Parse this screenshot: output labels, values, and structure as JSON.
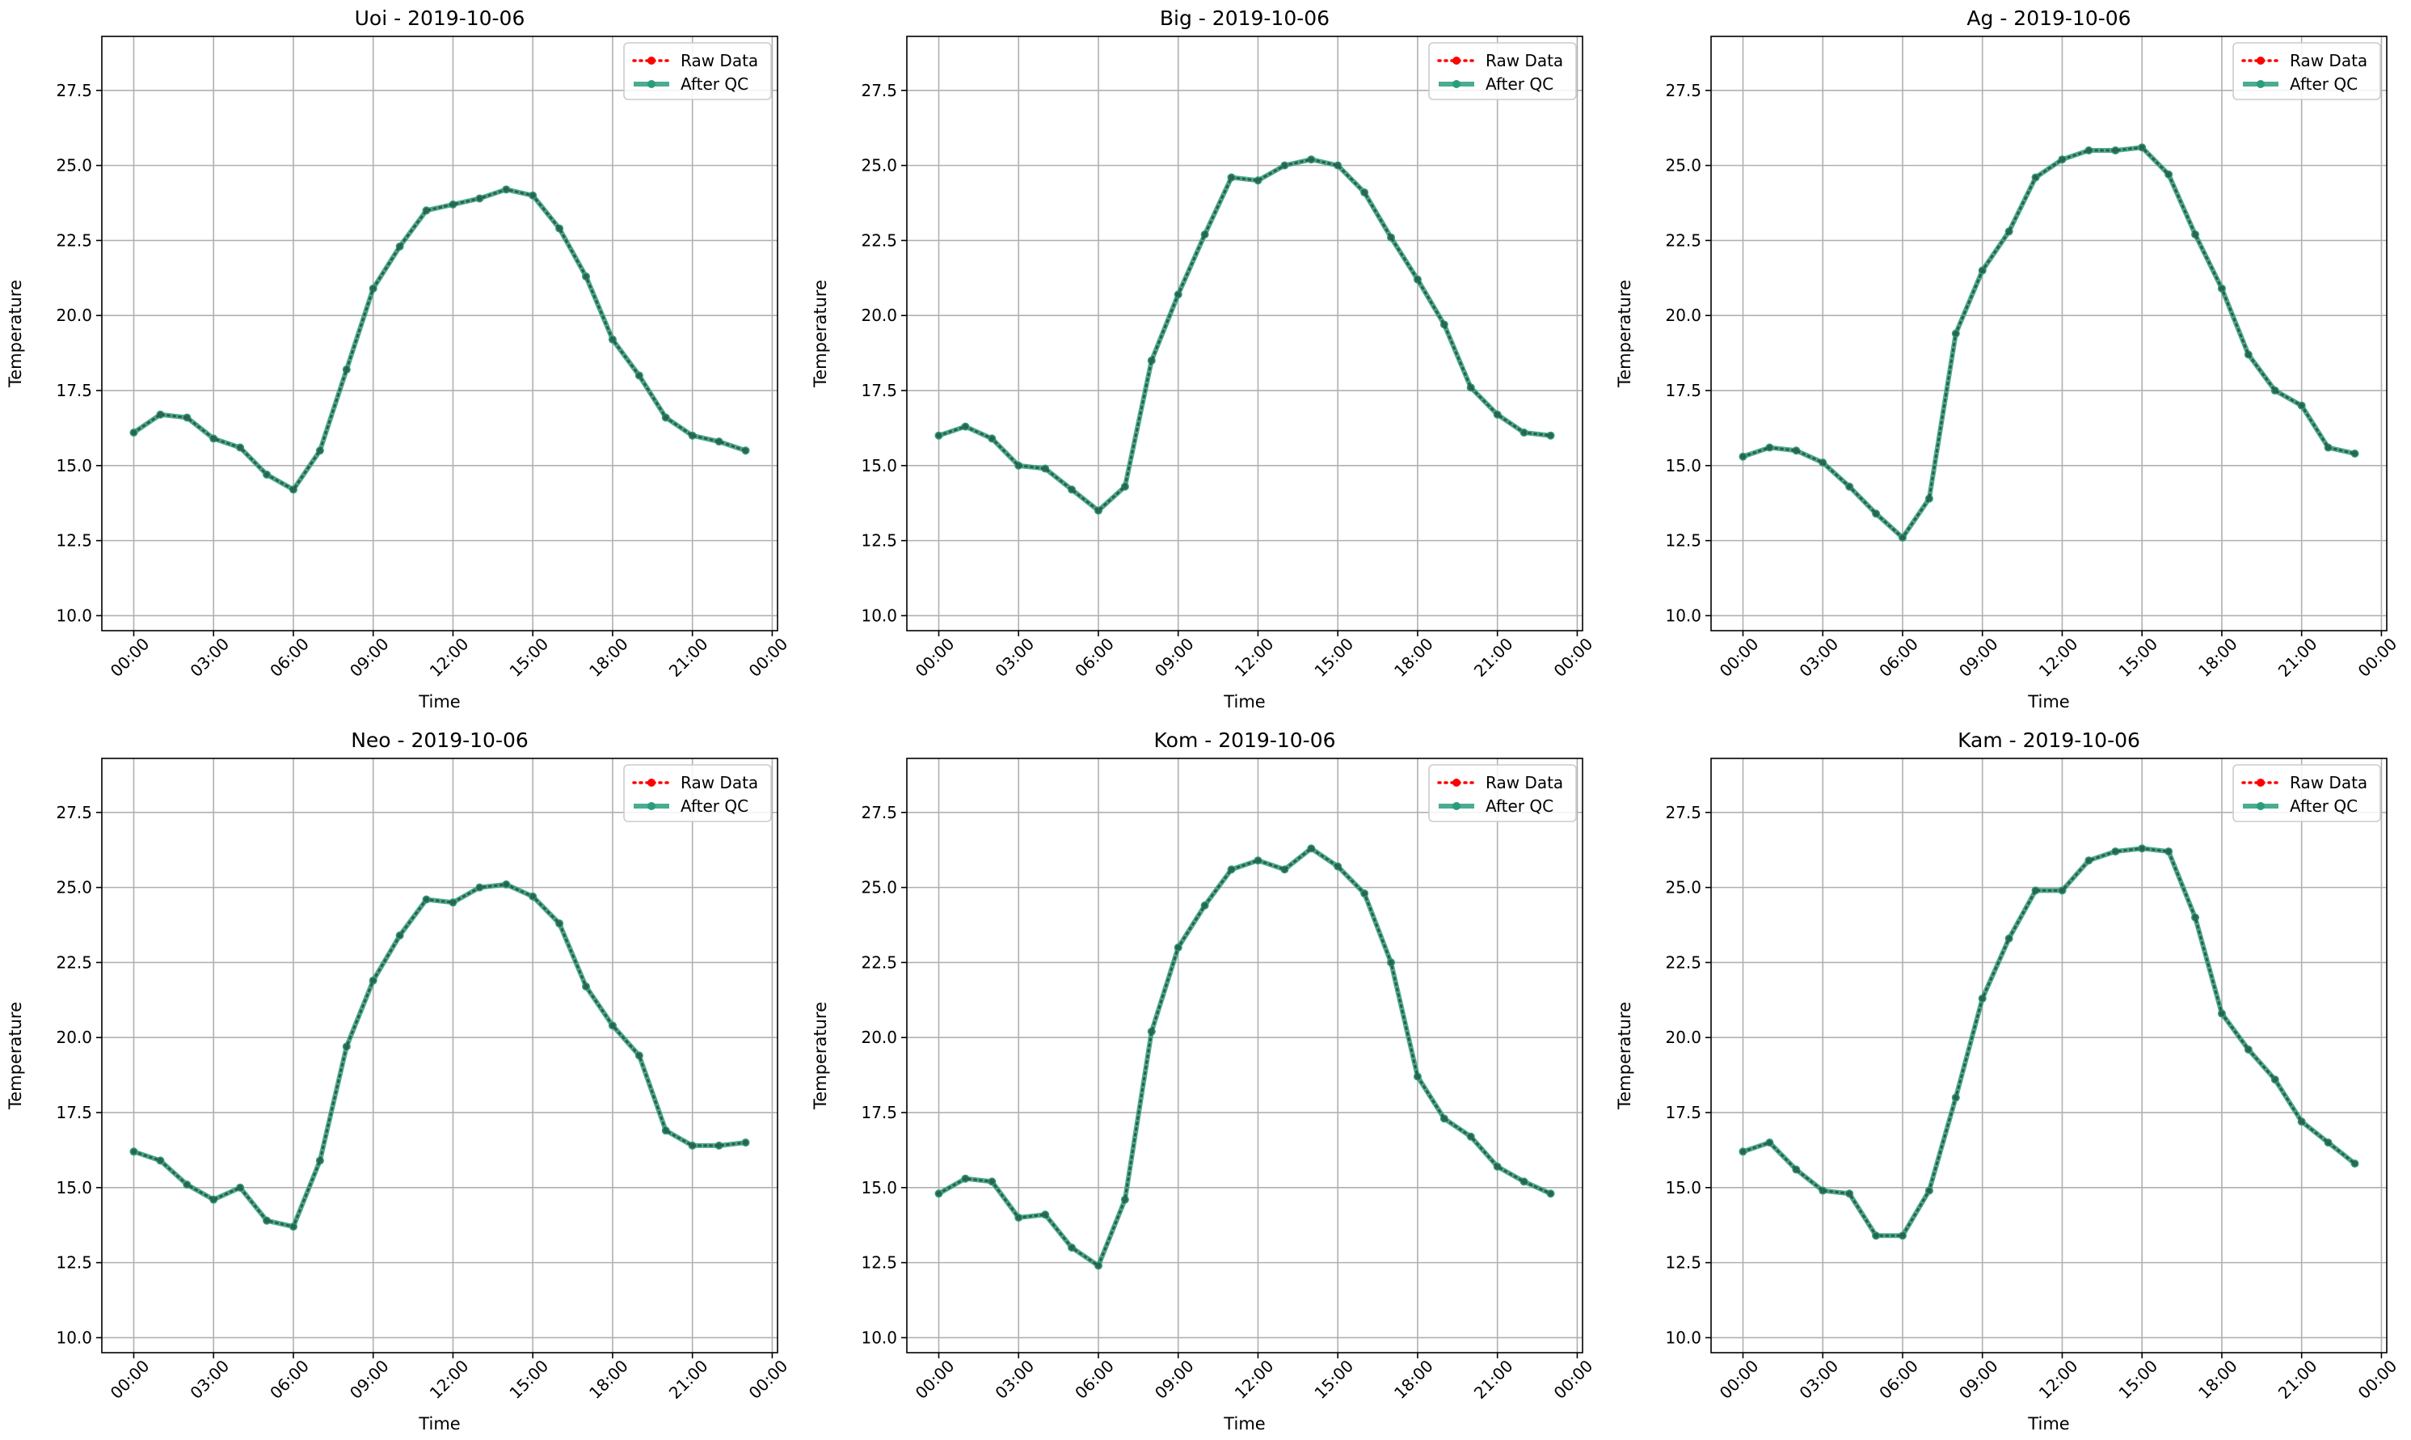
{
  "legend": {
    "raw_label": "Raw Data",
    "qc_label": "After QC"
  },
  "colors": {
    "raw": "#ff0000",
    "qc": "#2a9d7c",
    "grid": "#b0b0b0"
  },
  "chart_data": [
    {
      "type": "line",
      "title": "Uoi - 2019-10-06",
      "xlabel": "Time",
      "ylabel": "Temperature",
      "xticks": [
        "00:00",
        "03:00",
        "06:00",
        "09:00",
        "12:00",
        "15:00",
        "18:00",
        "21:00",
        "00:00"
      ],
      "yticks": [
        "10.0",
        "12.5",
        "15.0",
        "17.5",
        "20.0",
        "22.5",
        "25.0",
        "27.5"
      ],
      "xlim": [
        -1.2,
        24.2
      ],
      "ylim": [
        9.5,
        29.3
      ],
      "grid": true,
      "legend_position": "top-right",
      "x_hours": [
        0,
        1,
        2,
        3,
        4,
        5,
        6,
        7,
        8,
        9,
        10,
        11,
        12,
        13,
        14,
        15,
        16,
        17,
        18,
        19,
        20,
        21,
        22,
        23
      ],
      "series": [
        {
          "name": "Raw Data",
          "values": [
            16.1,
            16.7,
            16.6,
            15.9,
            15.6,
            14.7,
            14.2,
            15.5,
            18.2,
            20.9,
            22.3,
            23.5,
            23.7,
            23.9,
            24.2,
            24.0,
            22.9,
            21.3,
            19.2,
            18.0,
            16.6,
            16.0,
            15.8,
            15.5
          ]
        },
        {
          "name": "After QC",
          "values": [
            16.1,
            16.7,
            16.6,
            15.9,
            15.6,
            14.7,
            14.2,
            15.5,
            18.2,
            20.9,
            22.3,
            23.5,
            23.7,
            23.9,
            24.2,
            24.0,
            22.9,
            21.3,
            19.2,
            18.0,
            16.6,
            16.0,
            15.8,
            15.5
          ]
        }
      ]
    },
    {
      "type": "line",
      "title": "Big - 2019-10-06",
      "xlabel": "Time",
      "ylabel": "Temperature",
      "xticks": [
        "00:00",
        "03:00",
        "06:00",
        "09:00",
        "12:00",
        "15:00",
        "18:00",
        "21:00",
        "00:00"
      ],
      "yticks": [
        "10.0",
        "12.5",
        "15.0",
        "17.5",
        "20.0",
        "22.5",
        "25.0",
        "27.5"
      ],
      "xlim": [
        -1.2,
        24.2
      ],
      "ylim": [
        9.5,
        29.3
      ],
      "grid": true,
      "legend_position": "top-right",
      "x_hours": [
        0,
        1,
        2,
        3,
        4,
        5,
        6,
        7,
        8,
        9,
        10,
        11,
        12,
        13,
        14,
        15,
        16,
        17,
        18,
        19,
        20,
        21,
        22,
        23
      ],
      "series": [
        {
          "name": "Raw Data",
          "values": [
            16.0,
            16.3,
            15.9,
            15.0,
            14.9,
            14.2,
            13.5,
            14.3,
            18.5,
            20.7,
            22.7,
            24.6,
            24.5,
            25.0,
            25.2,
            25.0,
            24.1,
            22.6,
            21.2,
            19.7,
            17.6,
            16.7,
            16.1,
            16.0
          ]
        },
        {
          "name": "After QC",
          "values": [
            16.0,
            16.3,
            15.9,
            15.0,
            14.9,
            14.2,
            13.5,
            14.3,
            18.5,
            20.7,
            22.7,
            24.6,
            24.5,
            25.0,
            25.2,
            25.0,
            24.1,
            22.6,
            21.2,
            19.7,
            17.6,
            16.7,
            16.1,
            16.0
          ]
        }
      ]
    },
    {
      "type": "line",
      "title": "Ag - 2019-10-06",
      "xlabel": "Time",
      "ylabel": "Temperature",
      "xticks": [
        "00:00",
        "03:00",
        "06:00",
        "09:00",
        "12:00",
        "15:00",
        "18:00",
        "21:00",
        "00:00"
      ],
      "yticks": [
        "10.0",
        "12.5",
        "15.0",
        "17.5",
        "20.0",
        "22.5",
        "25.0",
        "27.5"
      ],
      "xlim": [
        -1.2,
        24.2
      ],
      "ylim": [
        9.5,
        29.3
      ],
      "grid": true,
      "legend_position": "top-right",
      "x_hours": [
        0,
        1,
        2,
        3,
        4,
        5,
        6,
        7,
        8,
        9,
        10,
        11,
        12,
        13,
        14,
        15,
        16,
        17,
        18,
        19,
        20,
        21,
        22,
        23
      ],
      "series": [
        {
          "name": "Raw Data",
          "values": [
            15.3,
            15.6,
            15.5,
            15.1,
            14.3,
            13.4,
            12.6,
            13.9,
            19.4,
            21.5,
            22.8,
            24.6,
            25.2,
            25.5,
            25.5,
            25.6,
            24.7,
            22.7,
            20.9,
            18.7,
            17.5,
            17.0,
            15.6,
            15.4
          ]
        },
        {
          "name": "After QC",
          "values": [
            15.3,
            15.6,
            15.5,
            15.1,
            14.3,
            13.4,
            12.6,
            13.9,
            19.4,
            21.5,
            22.8,
            24.6,
            25.2,
            25.5,
            25.5,
            25.6,
            24.7,
            22.7,
            20.9,
            18.7,
            17.5,
            17.0,
            15.6,
            15.4
          ]
        }
      ]
    },
    {
      "type": "line",
      "title": "Neo - 2019-10-06",
      "xlabel": "Time",
      "ylabel": "Temperature",
      "xticks": [
        "00:00",
        "03:00",
        "06:00",
        "09:00",
        "12:00",
        "15:00",
        "18:00",
        "21:00",
        "00:00"
      ],
      "yticks": [
        "10.0",
        "12.5",
        "15.0",
        "17.5",
        "20.0",
        "22.5",
        "25.0",
        "27.5"
      ],
      "xlim": [
        -1.2,
        24.2
      ],
      "ylim": [
        9.5,
        29.3
      ],
      "grid": true,
      "legend_position": "top-right",
      "x_hours": [
        0,
        1,
        2,
        3,
        4,
        5,
        6,
        7,
        8,
        9,
        10,
        11,
        12,
        13,
        14,
        15,
        16,
        17,
        18,
        19,
        20,
        21,
        22,
        23
      ],
      "series": [
        {
          "name": "Raw Data",
          "values": [
            16.2,
            15.9,
            15.1,
            14.6,
            15.0,
            13.9,
            13.7,
            15.9,
            19.7,
            21.9,
            23.4,
            24.6,
            24.5,
            25.0,
            25.1,
            24.7,
            23.8,
            21.7,
            20.4,
            19.4,
            16.9,
            16.4,
            16.4,
            16.5
          ]
        },
        {
          "name": "After QC",
          "values": [
            16.2,
            15.9,
            15.1,
            14.6,
            15.0,
            13.9,
            13.7,
            15.9,
            19.7,
            21.9,
            23.4,
            24.6,
            24.5,
            25.0,
            25.1,
            24.7,
            23.8,
            21.7,
            20.4,
            19.4,
            16.9,
            16.4,
            16.4,
            16.5
          ]
        }
      ]
    },
    {
      "type": "line",
      "title": "Kom - 2019-10-06",
      "xlabel": "Time",
      "ylabel": "Temperature",
      "xticks": [
        "00:00",
        "03:00",
        "06:00",
        "09:00",
        "12:00",
        "15:00",
        "18:00",
        "21:00",
        "00:00"
      ],
      "yticks": [
        "10.0",
        "12.5",
        "15.0",
        "17.5",
        "20.0",
        "22.5",
        "25.0",
        "27.5"
      ],
      "xlim": [
        -1.2,
        24.2
      ],
      "ylim": [
        9.5,
        29.3
      ],
      "grid": true,
      "legend_position": "top-right",
      "x_hours": [
        0,
        1,
        2,
        3,
        4,
        5,
        6,
        7,
        8,
        9,
        10,
        11,
        12,
        13,
        14,
        15,
        16,
        17,
        18,
        19,
        20,
        21,
        22,
        23
      ],
      "series": [
        {
          "name": "Raw Data",
          "values": [
            14.8,
            15.3,
            15.2,
            14.0,
            14.1,
            13.0,
            12.4,
            14.6,
            20.2,
            23.0,
            24.4,
            25.6,
            25.9,
            25.6,
            26.3,
            25.7,
            24.8,
            22.5,
            18.7,
            17.3,
            16.7,
            15.7,
            15.2,
            14.8
          ]
        },
        {
          "name": "After QC",
          "values": [
            14.8,
            15.3,
            15.2,
            14.0,
            14.1,
            13.0,
            12.4,
            14.6,
            20.2,
            23.0,
            24.4,
            25.6,
            25.9,
            25.6,
            26.3,
            25.7,
            24.8,
            22.5,
            18.7,
            17.3,
            16.7,
            15.7,
            15.2,
            14.8
          ]
        }
      ]
    },
    {
      "type": "line",
      "title": "Kam - 2019-10-06",
      "xlabel": "Time",
      "ylabel": "Temperature",
      "xticks": [
        "00:00",
        "03:00",
        "06:00",
        "09:00",
        "12:00",
        "15:00",
        "18:00",
        "21:00",
        "00:00"
      ],
      "yticks": [
        "10.0",
        "12.5",
        "15.0",
        "17.5",
        "20.0",
        "22.5",
        "25.0",
        "27.5"
      ],
      "xlim": [
        -1.2,
        24.2
      ],
      "ylim": [
        9.5,
        29.3
      ],
      "grid": true,
      "legend_position": "top-right",
      "x_hours": [
        0,
        1,
        2,
        3,
        4,
        5,
        6,
        7,
        8,
        9,
        10,
        11,
        12,
        13,
        14,
        15,
        16,
        17,
        18,
        19,
        20,
        21,
        22,
        23
      ],
      "series": [
        {
          "name": "Raw Data",
          "values": [
            16.2,
            16.5,
            15.6,
            14.9,
            14.8,
            13.4,
            13.4,
            14.9,
            18.0,
            21.3,
            23.3,
            24.9,
            24.9,
            25.9,
            26.2,
            26.3,
            26.2,
            24.0,
            20.8,
            19.6,
            18.6,
            17.2,
            16.5,
            15.8
          ]
        },
        {
          "name": "After QC",
          "values": [
            16.2,
            16.5,
            15.6,
            14.9,
            14.8,
            13.4,
            13.4,
            14.9,
            18.0,
            21.3,
            23.3,
            24.9,
            24.9,
            25.9,
            26.2,
            26.3,
            26.2,
            24.0,
            20.8,
            19.6,
            18.6,
            17.2,
            16.5,
            15.8
          ]
        }
      ]
    }
  ]
}
